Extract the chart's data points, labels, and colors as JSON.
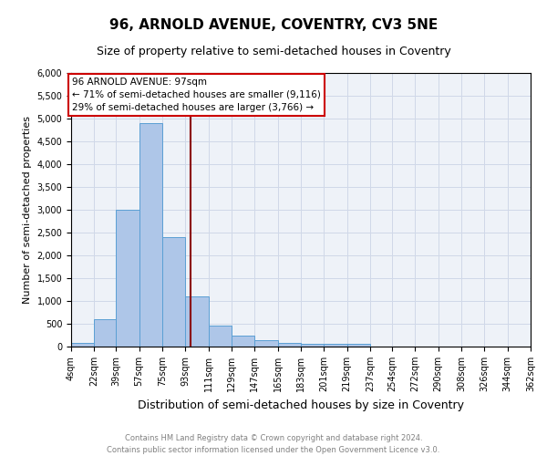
{
  "title": "96, ARNOLD AVENUE, COVENTRY, CV3 5NE",
  "subtitle": "Size of property relative to semi-detached houses in Coventry",
  "xlabel": "Distribution of semi-detached houses by size in Coventry",
  "ylabel": "Number of semi-detached properties",
  "footer": "Contains HM Land Registry data © Crown copyright and database right 2024.\nContains public sector information licensed under the Open Government Licence v3.0.",
  "annotation_title": "96 ARNOLD AVENUE: 97sqm",
  "annotation_line1": "← 71% of semi-detached houses are smaller (9,116)",
  "annotation_line2": "29% of semi-detached houses are larger (3,766) →",
  "property_size": 97,
  "vline_x": 97,
  "bar_edges": [
    4,
    22,
    39,
    57,
    75,
    93,
    111,
    129,
    147,
    165,
    183,
    201,
    219,
    237,
    254,
    272,
    290,
    308,
    326,
    344,
    362
  ],
  "bar_heights": [
    75,
    600,
    3000,
    4900,
    2400,
    1100,
    470,
    250,
    150,
    80,
    70,
    60,
    70,
    0,
    0,
    0,
    0,
    0,
    0,
    0
  ],
  "bar_color": "#aec6e8",
  "bar_edgecolor": "#5a9fd4",
  "vline_color": "#8b0000",
  "ylim": [
    0,
    6000
  ],
  "yticks": [
    0,
    500,
    1000,
    1500,
    2000,
    2500,
    3000,
    3500,
    4000,
    4500,
    5000,
    5500,
    6000
  ],
  "grid_color": "#d0d8e8",
  "bg_color": "#eef2f8",
  "annotation_box_color": "#ffffff",
  "annotation_box_edgecolor": "#cc0000",
  "title_fontsize": 11,
  "subtitle_fontsize": 9,
  "ylabel_fontsize": 8,
  "xlabel_fontsize": 9,
  "tick_fontsize": 7,
  "footer_fontsize": 6,
  "tick_labels": [
    "4sqm",
    "22sqm",
    "39sqm",
    "57sqm",
    "75sqm",
    "93sqm",
    "111sqm",
    "129sqm",
    "147sqm",
    "165sqm",
    "183sqm",
    "201sqm",
    "219sqm",
    "237sqm",
    "254sqm",
    "272sqm",
    "290sqm",
    "308sqm",
    "326sqm",
    "344sqm",
    "362sqm"
  ]
}
